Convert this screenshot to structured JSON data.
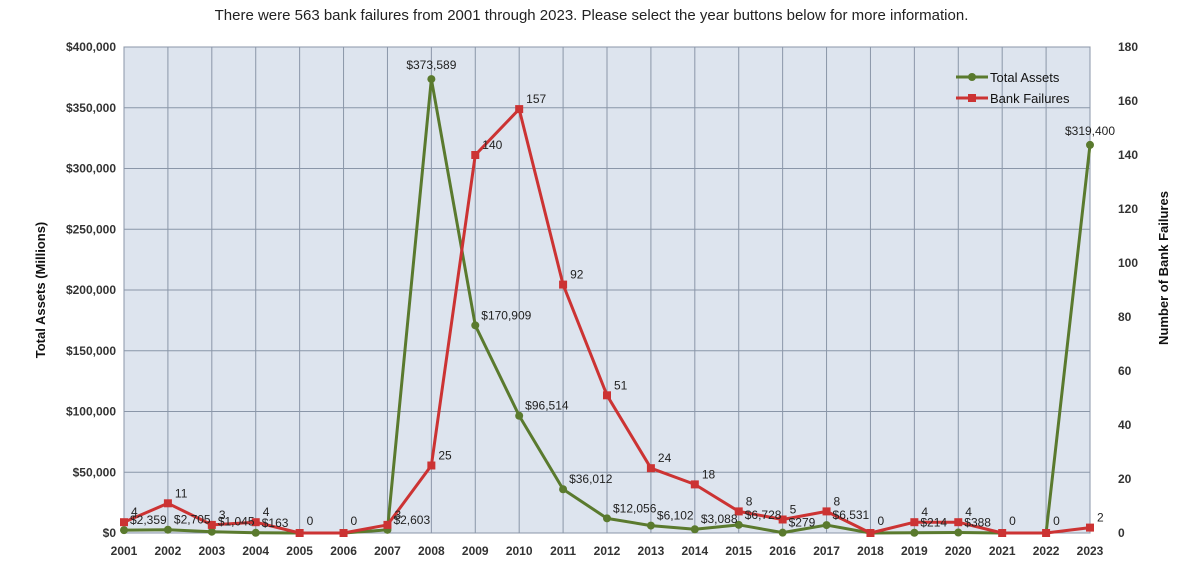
{
  "header": {
    "text": "There were 563 bank failures from 2001 through 2023. Please select the year buttons below for more information."
  },
  "chart_data": {
    "type": "line",
    "x": [
      "2001",
      "2002",
      "2003",
      "2004",
      "2005",
      "2006",
      "2007",
      "2008",
      "2009",
      "2010",
      "2011",
      "2012",
      "2013",
      "2014",
      "2015",
      "2016",
      "2017",
      "2018",
      "2019",
      "2020",
      "2021",
      "2022",
      "2023"
    ],
    "ylabel": "Total Assets (Millions)",
    "y2label": "Number of Bank Failures",
    "ylim": [
      0,
      400000
    ],
    "y2lim": [
      0,
      180
    ],
    "yticks": [
      "$0",
      "$50,000",
      "$100,000",
      "$150,000",
      "$200,000",
      "$250,000",
      "$300,000",
      "$350,000",
      "$400,000"
    ],
    "y2ticks": [
      "0",
      "20",
      "40",
      "60",
      "80",
      "100",
      "120",
      "140",
      "160",
      "180"
    ],
    "grid": true,
    "legend_position": "top-right",
    "series": [
      {
        "name": "Total Assets",
        "axis": "left",
        "color": "#5a7a2e",
        "marker": "circle",
        "values": [
          2359,
          2705,
          1045,
          163,
          0,
          0,
          2603,
          373589,
          170909,
          96514,
          36012,
          12056,
          6102,
          3088,
          6728,
          279,
          6531,
          0,
          214,
          388,
          0,
          0,
          319400
        ],
        "labels": [
          "$2,359",
          "$2,705",
          "$1,045",
          "$163",
          "",
          "",
          "$2,603",
          "$373,589",
          "$170,909",
          "$96,514",
          "$36,012",
          "$12,056",
          "$6,102",
          "$3,088",
          "$6,728",
          "$279",
          "$6,531",
          "",
          "$214",
          "$388",
          "",
          "",
          "$319,400"
        ]
      },
      {
        "name": "Bank Failures",
        "axis": "right",
        "color": "#cc3333",
        "marker": "square",
        "values": [
          4,
          11,
          3,
          4,
          0,
          0,
          3,
          25,
          140,
          157,
          92,
          51,
          24,
          18,
          8,
          5,
          8,
          0,
          4,
          4,
          0,
          0,
          2
        ],
        "labels": [
          "4",
          "11",
          "3",
          "4",
          "0",
          "0",
          "3",
          "25",
          "140",
          "157",
          "92",
          "51",
          "24",
          "18",
          "8",
          "5",
          "8",
          "0",
          "4",
          "4",
          "0",
          "0",
          "2"
        ]
      }
    ]
  }
}
